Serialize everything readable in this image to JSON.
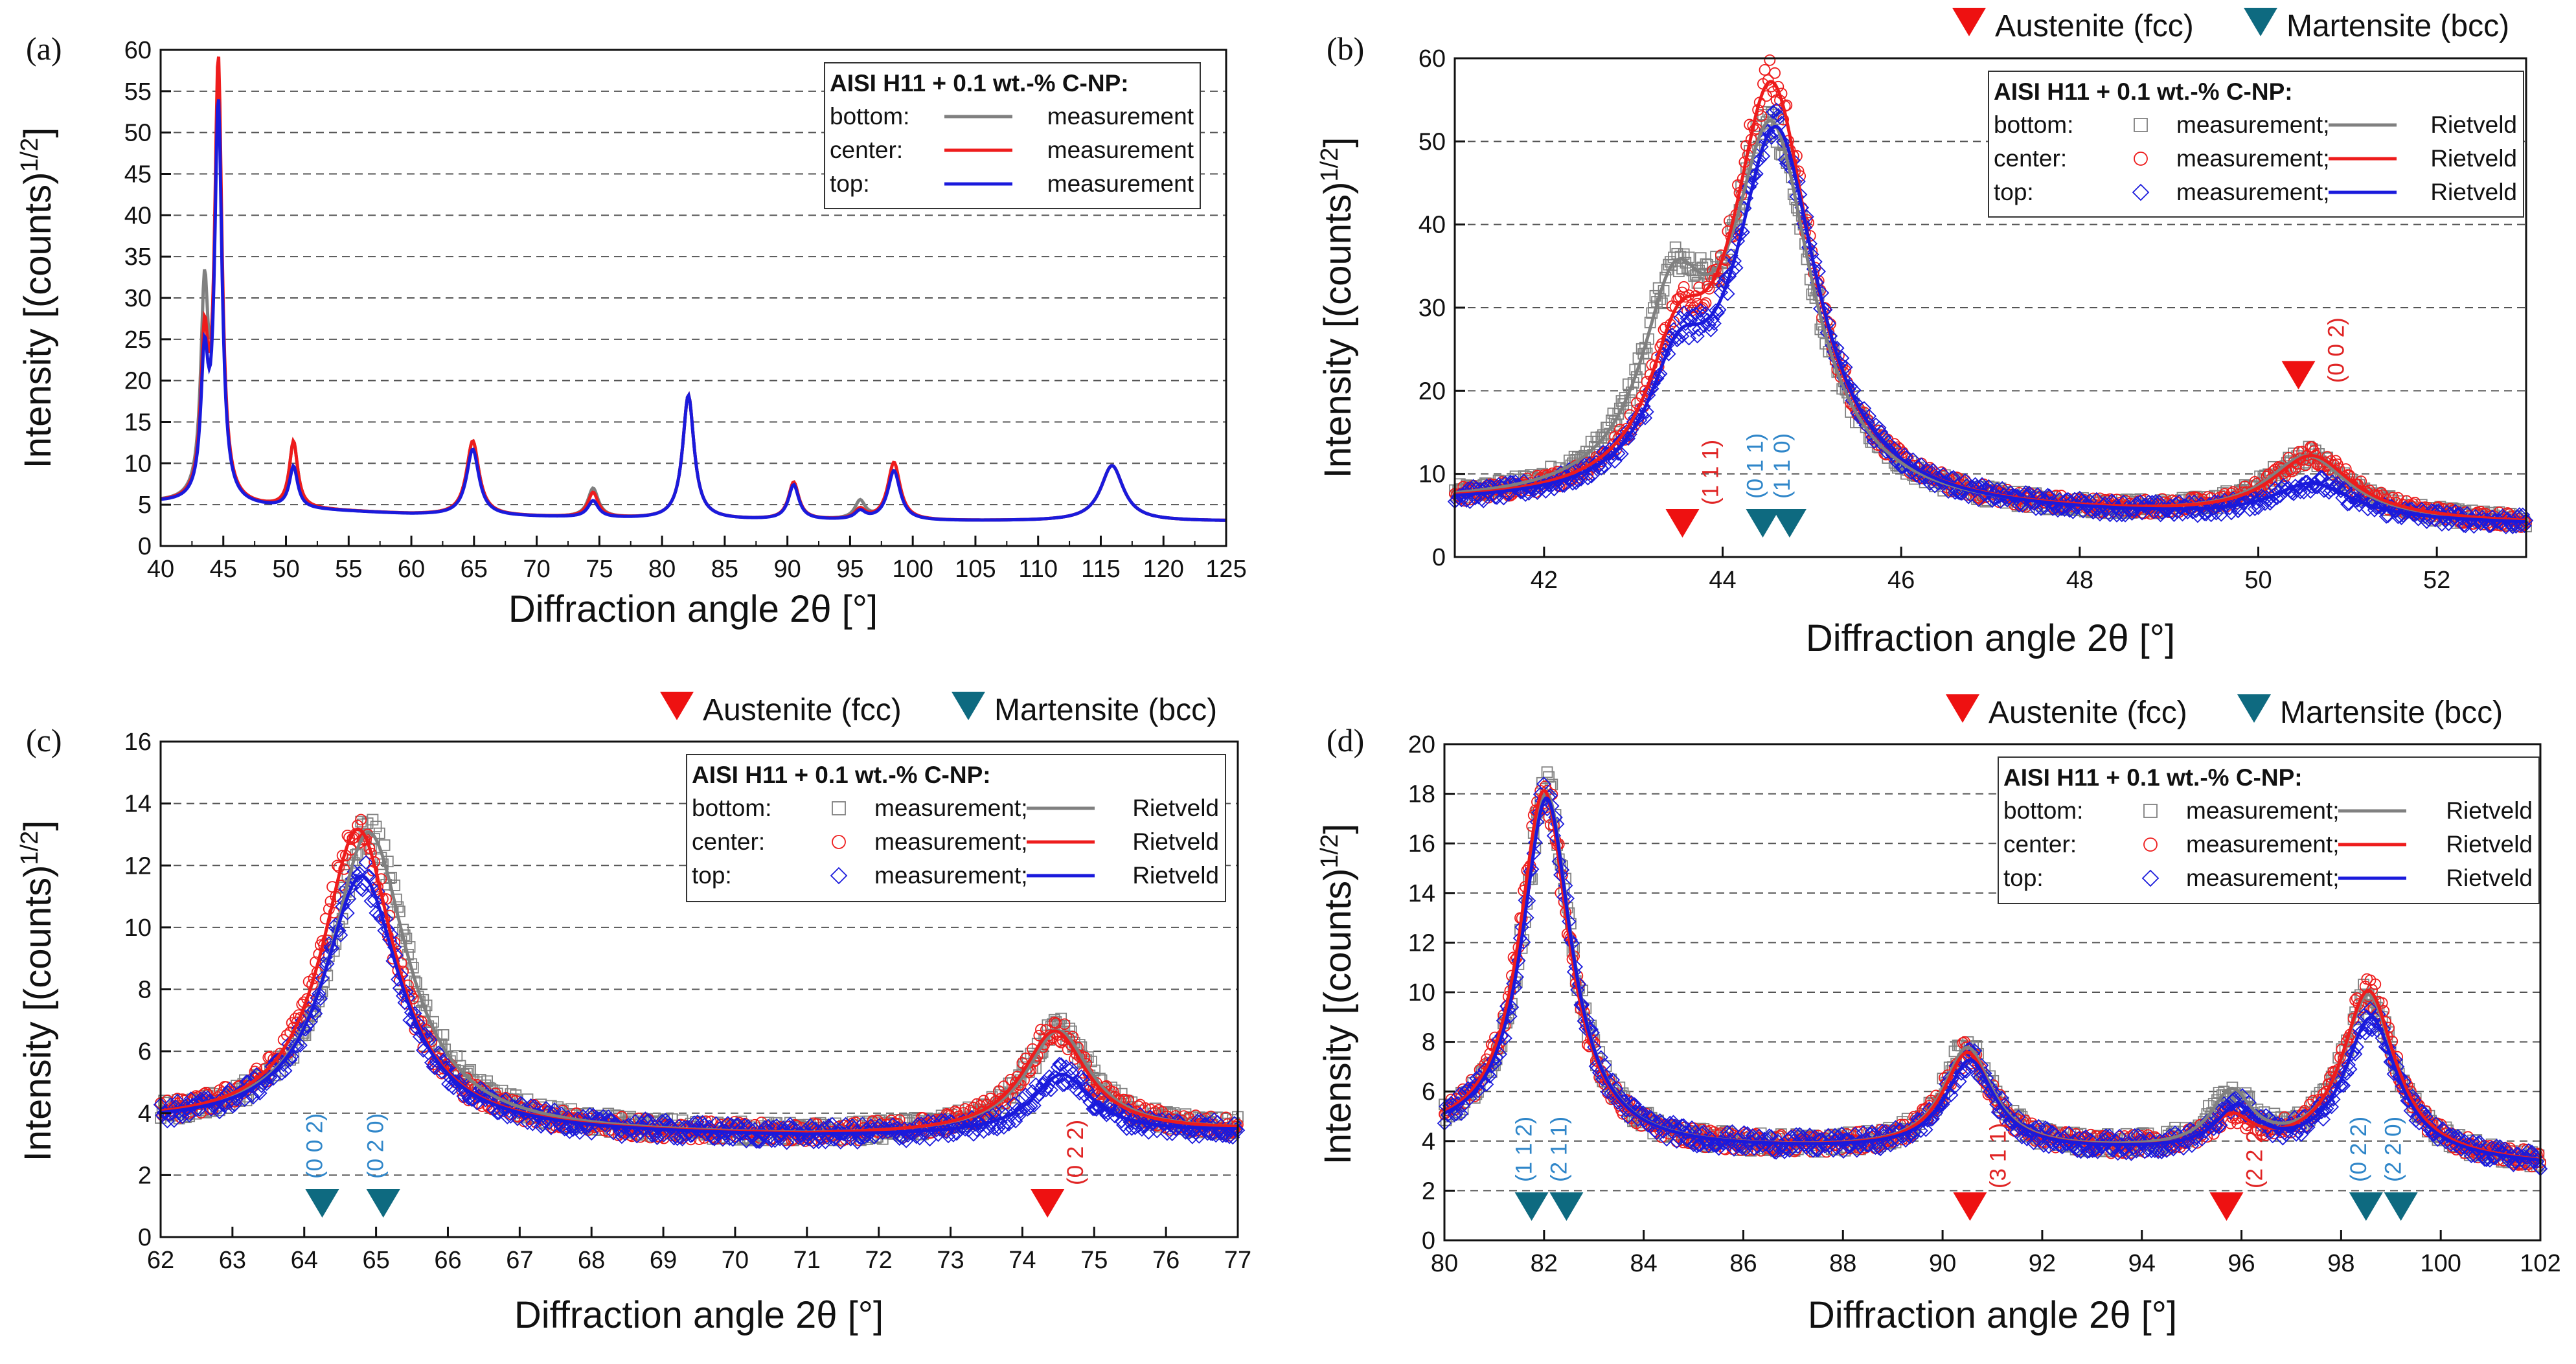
{
  "colors": {
    "bottom": "#808080",
    "center": "#ee1c1c",
    "top": "#1a1adc",
    "austenite": "#ee1111",
    "martensite": "#0e6a80",
    "austenite_label": "#e02424",
    "martensite_label": "#2f86c9",
    "grid": "#555555"
  },
  "shared": {
    "xlabel": "Diffraction angle 2θ [°]",
    "ylabel": "Intensity [(counts)1/2]",
    "ylabel_main": "Intensity [(counts)",
    "ylabel_sup": "1/2",
    "ylabel_close": "]",
    "legend_title": "AISI H11 + 0.1 wt.-% C-NP:",
    "phase_legend": {
      "austenite": "Austenite (fcc)",
      "martensite": "Martensite (bcc)"
    }
  },
  "chart_data": [
    {
      "panel": "(a)",
      "type": "line",
      "xlabel": "Diffraction angle 2θ [°]",
      "ylabel": "Intensity [(counts)1/2]",
      "xlim": [
        40,
        125
      ],
      "ylim": [
        0,
        60
      ],
      "xticks": [
        40,
        45,
        50,
        55,
        60,
        65,
        70,
        75,
        80,
        85,
        90,
        95,
        100,
        105,
        110,
        115,
        120,
        125
      ],
      "yticks": [
        0,
        5,
        10,
        15,
        20,
        25,
        30,
        35,
        40,
        45,
        50,
        55,
        60
      ],
      "grid_y": [
        5,
        10,
        15,
        20,
        25,
        30,
        35,
        40,
        45,
        50,
        55
      ],
      "legend": {
        "title": "AISI H11 + 0.1 wt.-% C-NP:",
        "rows": [
          {
            "name": "bottom:",
            "label": "measurement"
          },
          {
            "name": "center:",
            "label": "measurement"
          },
          {
            "name": "top:",
            "label": "measurement"
          }
        ]
      },
      "series": [
        {
          "name": "bottom",
          "background": [
            [
              40,
              5.2
            ],
            [
              60,
              3.8
            ],
            [
              80,
              3.2
            ],
            [
              100,
              3.0
            ],
            [
              125,
              3.0
            ]
          ],
          "peaks": [
            [
              43.5,
              24,
              0.35
            ],
            [
              44.6,
              49,
              0.35
            ],
            [
              50.6,
              8,
              0.4
            ],
            [
              64.9,
              9,
              0.6
            ],
            [
              74.5,
              3.5,
              0.5
            ],
            [
              82.1,
              15,
              0.55
            ],
            [
              90.5,
              4.5,
              0.5
            ],
            [
              95.8,
              2.2,
              0.5
            ],
            [
              98.5,
              6,
              0.6
            ],
            [
              115.9,
              6.7,
              1.1
            ]
          ]
        },
        {
          "name": "center",
          "background": [
            [
              40,
              5.2
            ],
            [
              60,
              3.8
            ],
            [
              80,
              3.2
            ],
            [
              100,
              3.0
            ],
            [
              125,
              3.0
            ]
          ],
          "peaks": [
            [
              43.5,
              18,
              0.35
            ],
            [
              44.6,
              53,
              0.35
            ],
            [
              50.6,
              8,
              0.4
            ],
            [
              64.9,
              9,
              0.6
            ],
            [
              74.5,
              3,
              0.5
            ],
            [
              82.1,
              15,
              0.55
            ],
            [
              90.5,
              4.5,
              0.5
            ],
            [
              95.8,
              1.2,
              0.5
            ],
            [
              98.5,
              7,
              0.6
            ],
            [
              115.9,
              6.7,
              1.1
            ]
          ]
        },
        {
          "name": "top",
          "background": [
            [
              40,
              5.2
            ],
            [
              60,
              3.8
            ],
            [
              80,
              3.2
            ],
            [
              100,
              3.0
            ],
            [
              125,
              3.0
            ]
          ],
          "peaks": [
            [
              43.5,
              16,
              0.35
            ],
            [
              44.6,
              48,
              0.35
            ],
            [
              50.6,
              5,
              0.4
            ],
            [
              64.9,
              8,
              0.6
            ],
            [
              74.5,
              2,
              0.5
            ],
            [
              82.1,
              15,
              0.55
            ],
            [
              90.5,
              4.2,
              0.5
            ],
            [
              95.8,
              1,
              0.5
            ],
            [
              98.5,
              6,
              0.6
            ],
            [
              115.9,
              6.7,
              1.1
            ]
          ]
        }
      ]
    },
    {
      "panel": "(b)",
      "type": "scatter+line",
      "xlabel": "Diffraction angle 2θ [°]",
      "ylabel": "Intensity [(counts)1/2]",
      "xlim": [
        41,
        53
      ],
      "ylim": [
        0,
        60
      ],
      "xticks": [
        42,
        44,
        46,
        48,
        50,
        52
      ],
      "yticks": [
        0,
        10,
        20,
        30,
        40,
        50,
        60
      ],
      "grid_y": [
        10,
        20,
        30,
        40,
        50
      ],
      "legend": {
        "title": "AISI H11 + 0.1 wt.-% C-NP:",
        "rows": [
          {
            "name": "bottom:",
            "label": "measurement;",
            "fit": "Rietveld"
          },
          {
            "name": "center:",
            "label": "measurement;",
            "fit": "Rietveld"
          },
          {
            "name": "top:",
            "label": "measurement;",
            "fit": "Rietveld"
          }
        ]
      },
      "series": [
        {
          "name": "bottom",
          "background": [
            [
              41,
              6
            ],
            [
              53,
              3.8
            ]
          ],
          "peaks": [
            [
              43.45,
              21,
              0.45
            ],
            [
              44.55,
              44,
              0.55
            ],
            [
              50.55,
              7.5,
              0.55
            ]
          ]
        },
        {
          "name": "center",
          "background": [
            [
              41,
              6
            ],
            [
              53,
              3.8
            ]
          ],
          "peaks": [
            [
              43.5,
              14,
              0.4
            ],
            [
              44.55,
              50,
              0.55
            ],
            [
              50.6,
              7.5,
              0.55
            ]
          ]
        },
        {
          "name": "top",
          "background": [
            [
              41,
              6
            ],
            [
              53,
              3.8
            ]
          ],
          "peaks": [
            [
              43.5,
              12,
              0.4
            ],
            [
              44.6,
              45,
              0.57
            ],
            [
              50.6,
              4.2,
              0.55
            ]
          ]
        }
      ],
      "markers": [
        {
          "phase": "austenite",
          "x": 43.55,
          "hkl": "(1 1 1)"
        },
        {
          "phase": "martensite",
          "x": 44.45,
          "hkl": "(0 1 1)"
        },
        {
          "phase": "martensite",
          "x": 44.75,
          "hkl": "(1 1 0)"
        },
        {
          "phase": "austenite",
          "x": 50.45,
          "hkl": "(0 0 2)",
          "high": true
        }
      ]
    },
    {
      "panel": "(c)",
      "type": "scatter+line",
      "xlabel": "Diffraction angle 2θ [°]",
      "ylabel": "Intensity [(counts)1/2]",
      "xlim": [
        62,
        77
      ],
      "ylim": [
        0,
        16
      ],
      "xticks": [
        62,
        63,
        64,
        65,
        66,
        67,
        68,
        69,
        70,
        71,
        72,
        73,
        74,
        75,
        76,
        77
      ],
      "yticks": [
        0,
        2,
        4,
        6,
        8,
        10,
        12,
        14,
        16
      ],
      "grid_y": [
        2,
        4,
        6,
        8,
        10,
        12,
        14
      ],
      "legend": {
        "title": "AISI H11 + 0.1 wt.-% C-NP:",
        "rows": [
          {
            "name": "bottom:",
            "label": "measurement;",
            "fit": "Rietveld"
          },
          {
            "name": "center:",
            "label": "measurement;",
            "fit": "Rietveld"
          },
          {
            "name": "top:",
            "label": "measurement;",
            "fit": "Rietveld"
          }
        ]
      },
      "series": [
        {
          "name": "bottom",
          "background": [
            [
              62,
              3.6
            ],
            [
              68,
              3.3
            ],
            [
              71,
              3.2
            ],
            [
              77,
              3.4
            ]
          ],
          "peaks": [
            [
              64.9,
              9.6,
              0.65
            ],
            [
              74.5,
              3.3,
              0.55
            ]
          ]
        },
        {
          "name": "center",
          "background": [
            [
              62,
              3.6
            ],
            [
              68,
              3.3
            ],
            [
              71,
              3.2
            ],
            [
              77,
              3.4
            ]
          ],
          "peaks": [
            [
              64.75,
              9.7,
              0.62
            ],
            [
              74.45,
              3.3,
              0.55
            ]
          ]
        },
        {
          "name": "top",
          "background": [
            [
              62,
              3.6
            ],
            [
              68,
              3.3
            ],
            [
              71,
              3.2
            ],
            [
              77,
              3.4
            ]
          ],
          "peaks": [
            [
              64.8,
              8.2,
              0.65
            ],
            [
              74.55,
              1.9,
              0.5
            ]
          ]
        }
      ],
      "markers": [
        {
          "phase": "martensite",
          "x": 64.25,
          "hkl": "(0 0 2)"
        },
        {
          "phase": "martensite",
          "x": 65.1,
          "hkl": "(0 2 0)"
        },
        {
          "phase": "austenite",
          "x": 74.35,
          "hkl": "(0 2 2)"
        }
      ]
    },
    {
      "panel": "(d)",
      "type": "scatter+line",
      "xlabel": "Diffraction angle 2θ [°]",
      "ylabel": "Intensity [(counts)1/2]",
      "xlim": [
        80,
        102
      ],
      "ylim": [
        0,
        20
      ],
      "xticks": [
        80,
        82,
        84,
        86,
        88,
        90,
        92,
        94,
        96,
        98,
        100,
        102
      ],
      "yticks": [
        0,
        2,
        4,
        6,
        8,
        10,
        12,
        14,
        16,
        18,
        20
      ],
      "grid_y": [
        2,
        4,
        6,
        8,
        10,
        12,
        14,
        16,
        18
      ],
      "legend": {
        "title": "AISI H11 + 0.1 wt.-% C-NP:",
        "rows": [
          {
            "name": "bottom:",
            "label": "measurement;",
            "fit": "Rietveld"
          },
          {
            "name": "center:",
            "label": "measurement;",
            "fit": "Rietveld"
          },
          {
            "name": "top:",
            "label": "measurement;",
            "fit": "Rietveld"
          }
        ]
      },
      "series": [
        {
          "name": "bottom",
          "background": [
            [
              80,
              4
            ],
            [
              84,
              3.6
            ],
            [
              96,
              3.5
            ],
            [
              102,
              3.0
            ]
          ],
          "peaks": [
            [
              82.05,
              14.2,
              0.6
            ],
            [
              90.5,
              4.1,
              0.6
            ],
            [
              95.8,
              2.2,
              0.5
            ],
            [
              98.55,
              6.5,
              0.65
            ]
          ]
        },
        {
          "name": "center",
          "background": [
            [
              80,
              4
            ],
            [
              84,
              3.6
            ],
            [
              96,
              3.5
            ],
            [
              102,
              3.0
            ]
          ],
          "peaks": [
            [
              82.0,
              14.3,
              0.6
            ],
            [
              90.5,
              3.9,
              0.6
            ],
            [
              95.8,
              1.2,
              0.5
            ],
            [
              98.55,
              6.7,
              0.65
            ]
          ]
        },
        {
          "name": "top",
          "background": [
            [
              80,
              4
            ],
            [
              84,
              3.6
            ],
            [
              96,
              3.5
            ],
            [
              102,
              3.0
            ]
          ],
          "peaks": [
            [
              82.05,
              14.0,
              0.6
            ],
            [
              90.55,
              3.6,
              0.6
            ],
            [
              95.9,
              1.6,
              0.5
            ],
            [
              98.6,
              5.6,
              0.65
            ]
          ]
        }
      ],
      "markers": [
        {
          "phase": "martensite",
          "x": 81.75,
          "hkl": "(1 1 2)"
        },
        {
          "phase": "martensite",
          "x": 82.45,
          "hkl": "(2 1 1)"
        },
        {
          "phase": "austenite",
          "x": 90.55,
          "hkl": "(3 1 1)"
        },
        {
          "phase": "austenite",
          "x": 95.7,
          "hkl": "(2 2 2)"
        },
        {
          "phase": "martensite",
          "x": 98.5,
          "hkl": "(0 2 2)"
        },
        {
          "phase": "martensite",
          "x": 99.2,
          "hkl": "(2 2 0)"
        }
      ]
    }
  ]
}
